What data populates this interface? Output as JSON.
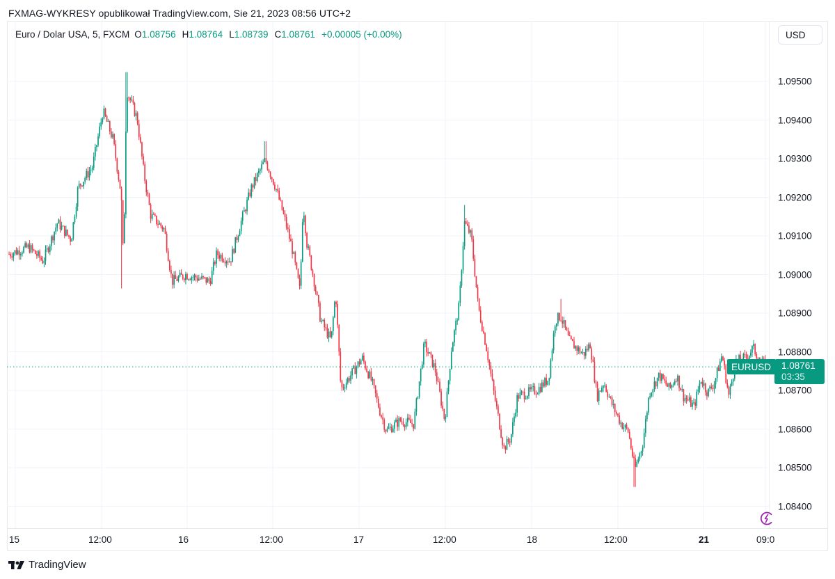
{
  "header": {
    "publish_line": "FXMAG-WYKRESY opublikował TradingView.com, Sie 21, 2023 08:56 UTC+2"
  },
  "legend": {
    "symbol": "Euro / Dolar USA, 5, FXCM",
    "open_label": "O",
    "open": "1.08756",
    "high_label": "H",
    "high": "1.08764",
    "low_label": "L",
    "low": "1.08739",
    "close_label": "C",
    "close": "1.08761",
    "change": "+0.00005 (+0.00%)"
  },
  "price_axis": {
    "currency": "USD",
    "ticks": [
      "1.09500",
      "1.09400",
      "1.09300",
      "1.09200",
      "1.09100",
      "1.09000",
      "1.08900",
      "1.08800",
      "1.08700",
      "1.08600",
      "1.08500",
      "1.08400"
    ]
  },
  "time_axis": {
    "ticks": [
      {
        "label": "15",
        "bold": false
      },
      {
        "label": "12:00",
        "bold": false
      },
      {
        "label": "16",
        "bold": false
      },
      {
        "label": "12:00",
        "bold": false
      },
      {
        "label": "17",
        "bold": false
      },
      {
        "label": "12:00",
        "bold": false
      },
      {
        "label": "18",
        "bold": false
      },
      {
        "label": "12:00",
        "bold": false
      },
      {
        "label": "21",
        "bold": true
      },
      {
        "label": "09:0",
        "bold": false
      }
    ]
  },
  "last_price": {
    "symbol_tag": "EURUSD",
    "price": "1.08761",
    "countdown": "03:35"
  },
  "footer": {
    "brand": "TradingView"
  },
  "colors": {
    "up": "#089981",
    "down": "#f23645",
    "grid": "#f0f3fa",
    "last_price_line": "#089981",
    "bolt": "#9c27b0"
  },
  "chart_data": {
    "type": "candlestick",
    "title": "Euro / Dolar USA, 5, FXCM",
    "symbol": "EURUSD",
    "interval": "5",
    "xlabel": "",
    "ylabel": "USD",
    "ylim": [
      1.0833,
      1.0964
    ],
    "y_ticks": [
      1.095,
      1.094,
      1.093,
      1.092,
      1.091,
      1.09,
      1.089,
      1.088,
      1.087,
      1.086,
      1.085,
      1.084
    ],
    "x_ticks": [
      "15",
      "12:00",
      "16",
      "12:00",
      "17",
      "12:00",
      "18",
      "12:00",
      "21",
      "09:0"
    ],
    "grid": true,
    "last_price": 1.08761,
    "ohlc_last": {
      "open": 1.08756,
      "high": 1.08764,
      "low": 1.08739,
      "close": 1.08761
    },
    "path_note": "approximate close-price waypoints across the visible range (x fraction 0..1 of plot width)",
    "waypoints": [
      [
        0.0,
        1.09053
      ],
      [
        0.026,
        1.09071
      ],
      [
        0.045,
        1.09035
      ],
      [
        0.064,
        1.09135
      ],
      [
        0.082,
        1.0909
      ],
      [
        0.091,
        1.09225
      ],
      [
        0.11,
        1.09279
      ],
      [
        0.124,
        1.09423
      ],
      [
        0.137,
        1.09351
      ],
      [
        0.148,
        1.09207
      ],
      [
        0.151,
        1.09027
      ],
      [
        0.155,
        1.09477
      ],
      [
        0.169,
        1.09405
      ],
      [
        0.178,
        1.09261
      ],
      [
        0.187,
        1.09153
      ],
      [
        0.205,
        1.09117
      ],
      [
        0.215,
        1.08982
      ],
      [
        0.233,
        1.09
      ],
      [
        0.265,
        1.08982
      ],
      [
        0.274,
        1.09054
      ],
      [
        0.292,
        1.09036
      ],
      [
        0.306,
        1.09135
      ],
      [
        0.32,
        1.09225
      ],
      [
        0.338,
        1.09297
      ],
      [
        0.352,
        1.09225
      ],
      [
        0.365,
        1.09135
      ],
      [
        0.374,
        1.09063
      ],
      [
        0.384,
        1.08955
      ],
      [
        0.388,
        1.09189
      ],
      [
        0.393,
        1.09081
      ],
      [
        0.402,
        1.08991
      ],
      [
        0.411,
        1.08883
      ],
      [
        0.425,
        1.08829
      ],
      [
        0.431,
        1.08955
      ],
      [
        0.438,
        1.08703
      ],
      [
        0.457,
        1.08757
      ],
      [
        0.466,
        1.08784
      ],
      [
        0.479,
        1.08721
      ],
      [
        0.489,
        1.08649
      ],
      [
        0.498,
        1.08595
      ],
      [
        0.516,
        1.08622
      ],
      [
        0.534,
        1.08613
      ],
      [
        0.548,
        1.0882
      ],
      [
        0.562,
        1.08757
      ],
      [
        0.575,
        1.08622
      ],
      [
        0.584,
        1.08811
      ],
      [
        0.594,
        1.08919
      ],
      [
        0.601,
        1.09135
      ],
      [
        0.61,
        1.09099
      ],
      [
        0.619,
        1.08919
      ],
      [
        0.63,
        1.08811
      ],
      [
        0.639,
        1.08703
      ],
      [
        0.653,
        1.0855
      ],
      [
        0.662,
        1.08577
      ],
      [
        0.671,
        1.08685
      ],
      [
        0.685,
        1.08694
      ],
      [
        0.698,
        1.08703
      ],
      [
        0.712,
        1.0873
      ],
      [
        0.721,
        1.08883
      ],
      [
        0.728,
        1.08892
      ],
      [
        0.739,
        1.08829
      ],
      [
        0.758,
        1.08793
      ],
      [
        0.767,
        1.0882
      ],
      [
        0.776,
        1.08685
      ],
      [
        0.785,
        1.08721
      ],
      [
        0.795,
        1.08667
      ],
      [
        0.808,
        1.08613
      ],
      [
        0.817,
        1.08595
      ],
      [
        0.826,
        1.08496
      ],
      [
        0.836,
        1.08559
      ],
      [
        0.845,
        1.08694
      ],
      [
        0.858,
        1.08739
      ],
      [
        0.872,
        1.08703
      ],
      [
        0.881,
        1.08739
      ],
      [
        0.89,
        1.08685
      ],
      [
        0.904,
        1.08658
      ],
      [
        0.913,
        1.0873
      ],
      [
        0.922,
        1.08694
      ],
      [
        0.931,
        1.08721
      ],
      [
        0.941,
        1.08793
      ],
      [
        0.95,
        1.08685
      ],
      [
        0.959,
        1.08775
      ],
      [
        0.973,
        1.08784
      ],
      [
        0.982,
        1.08811
      ],
      [
        0.991,
        1.08775
      ],
      [
        1.0,
        1.08761
      ]
    ],
    "extremes": [
      {
        "x": 0.155,
        "high": 1.09524
      },
      {
        "x": 0.148,
        "low": 1.08964
      },
      {
        "x": 0.338,
        "high": 1.09345
      },
      {
        "x": 0.601,
        "high": 1.0918
      },
      {
        "x": 0.826,
        "low": 1.0845
      },
      {
        "x": 0.728,
        "high": 1.08937
      }
    ]
  }
}
